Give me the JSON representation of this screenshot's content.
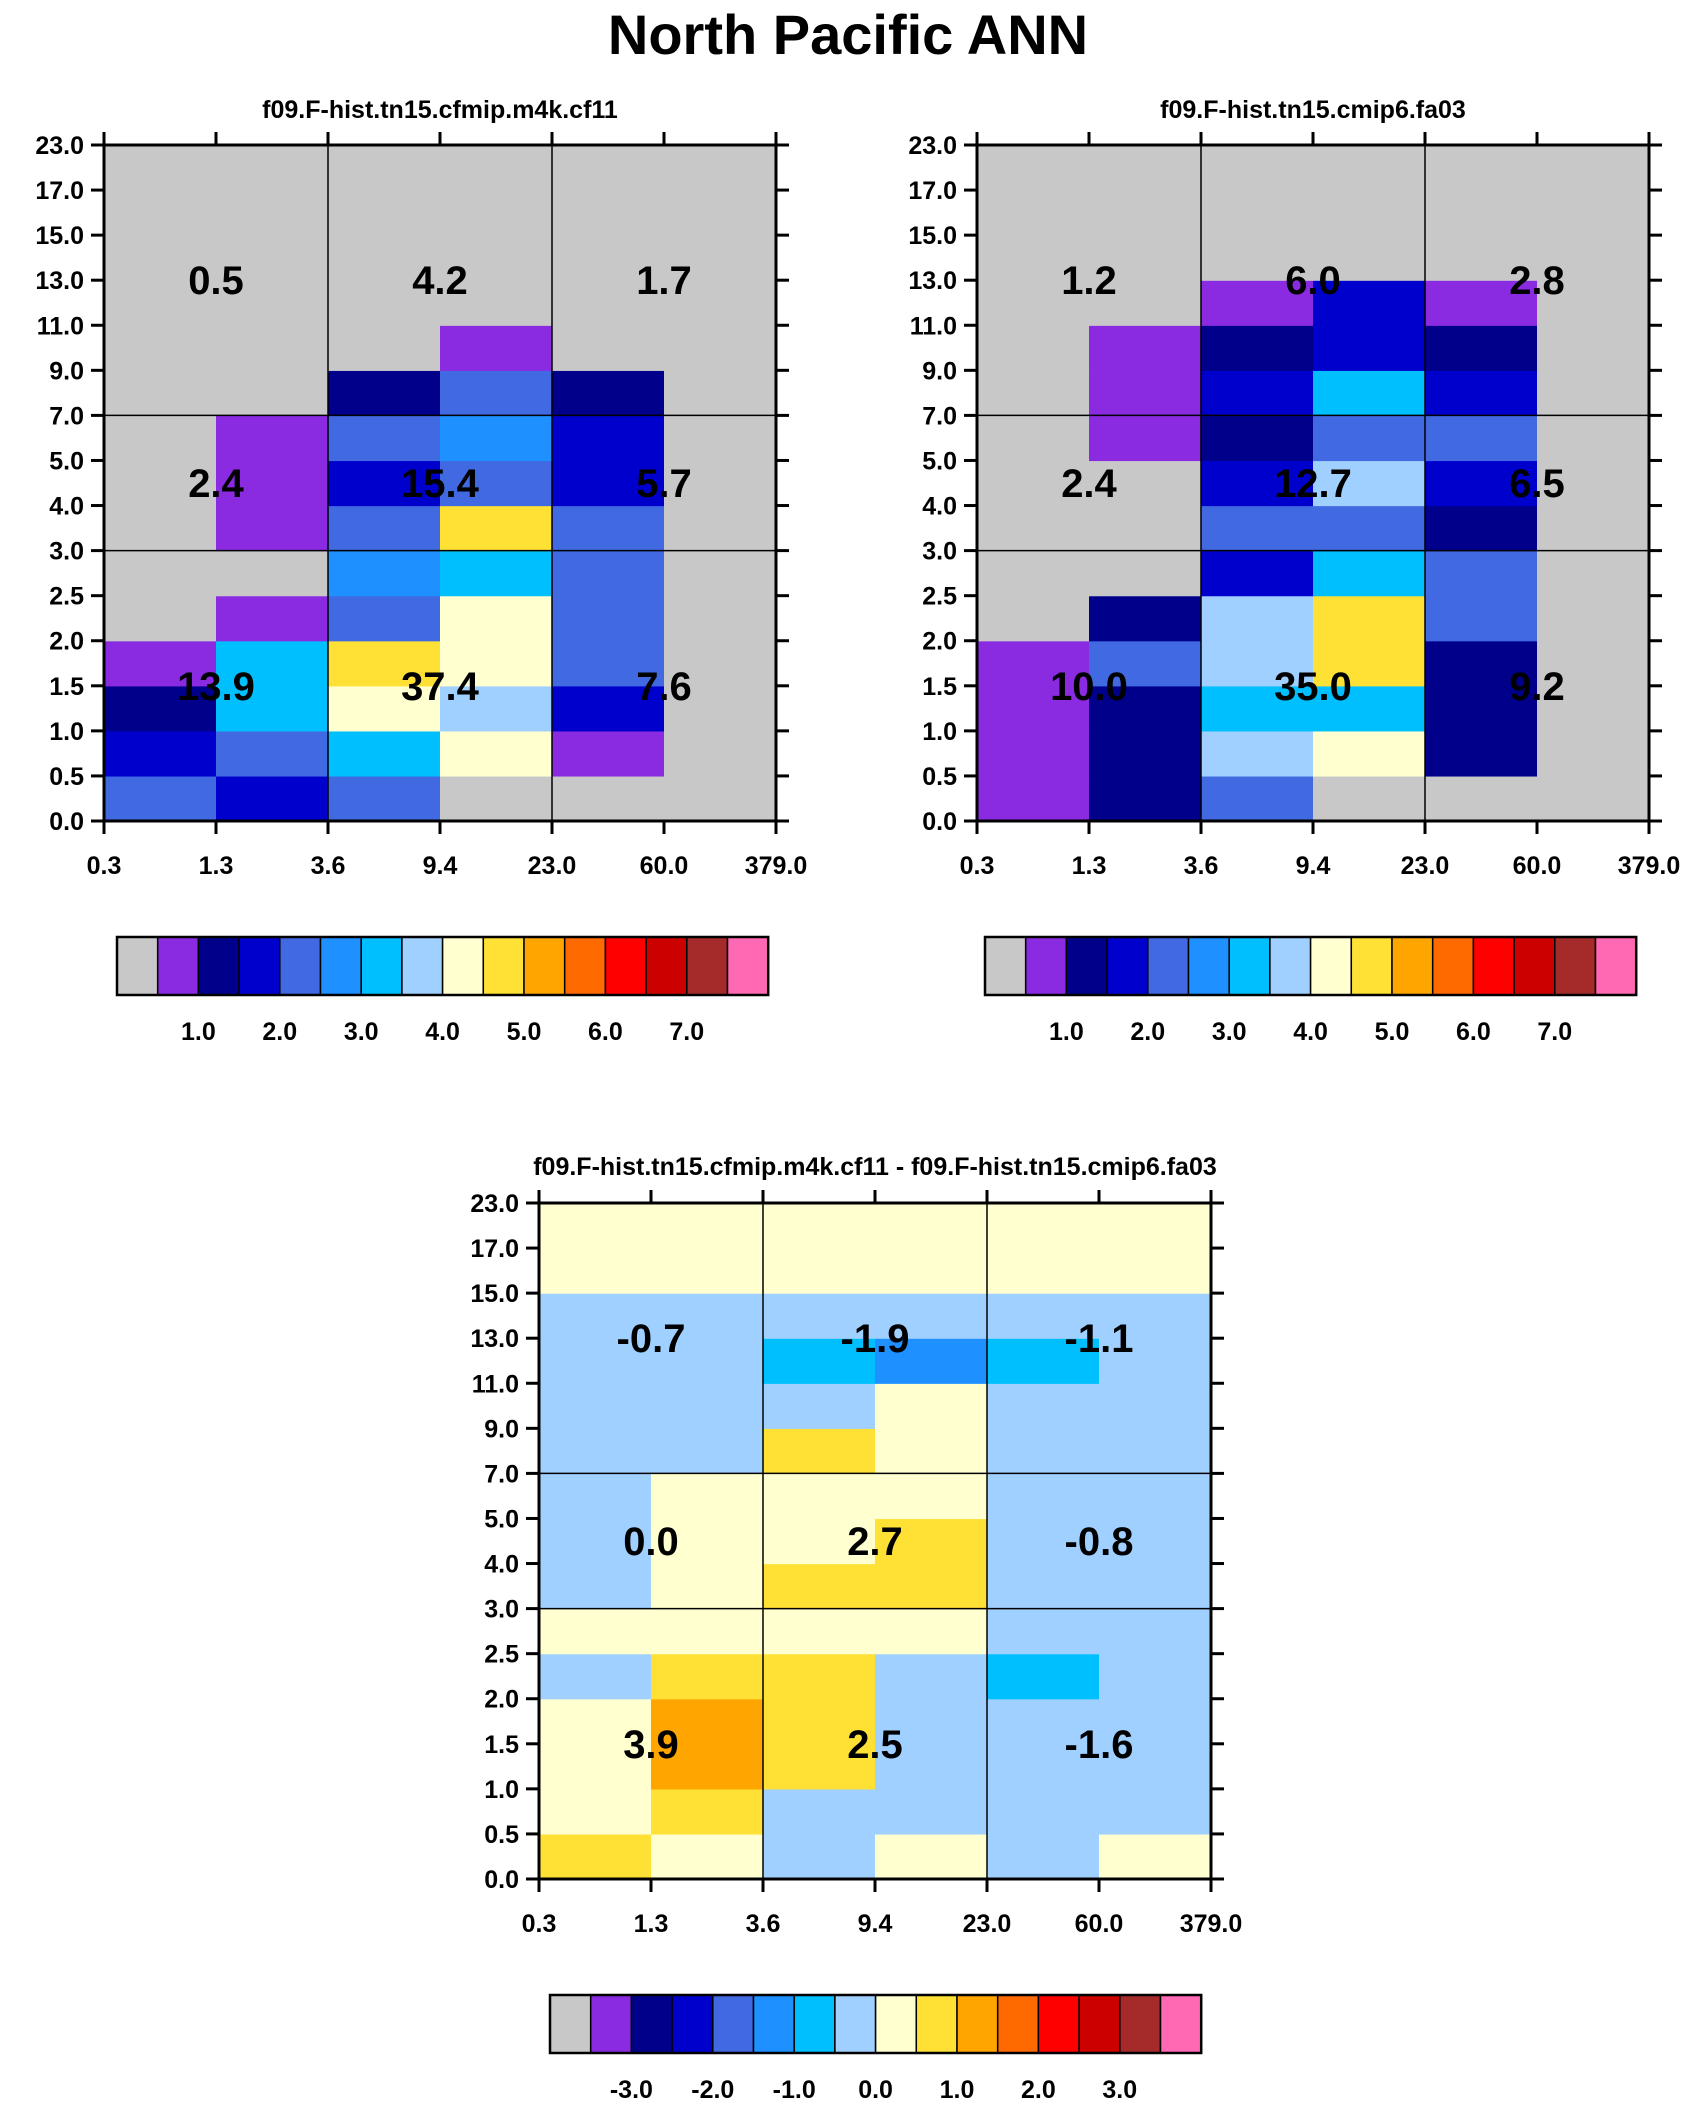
{
  "title": "North Pacific ANN",
  "axes": {
    "x_ticks": [
      "0.3",
      "1.3",
      "3.6",
      "9.4",
      "23.0",
      "60.0",
      "379.0"
    ],
    "y_ticks": [
      "0.0",
      "0.5",
      "1.0",
      "1.5",
      "2.0",
      "2.5",
      "3.0",
      "4.0",
      "5.0",
      "7.0",
      "9.0",
      "11.0",
      "13.0",
      "15.0",
      "17.0",
      "23.0"
    ]
  },
  "colors": {
    "missing": "#c8c8c8",
    "frame": "#000000",
    "palette": [
      "#c8c8c8",
      "#8a2be2",
      "#00008b",
      "#0000cd",
      "#4169e1",
      "#1e90ff",
      "#00bfff",
      "#a0d0ff",
      "#ffffd0",
      "#ffe135",
      "#ffa500",
      "#ff6a00",
      "#ff0000",
      "#cd0000",
      "#a52a2a",
      "#ff69b4"
    ]
  },
  "chart_data": [
    {
      "type": "heatmap",
      "title": "f09.F-hist.tn15.cfmip.m4k.cf11",
      "colorbar_labels": [
        "1.0",
        "2.0",
        "3.0",
        "4.0",
        "5.0",
        "6.0",
        "7.0"
      ],
      "cells": [
        [
          4,
          3,
          4,
          0,
          0,
          0
        ],
        [
          3,
          4,
          6,
          8,
          1,
          0
        ],
        [
          2,
          6,
          8,
          7,
          3,
          0
        ],
        [
          1,
          6,
          9,
          8,
          4,
          0
        ],
        [
          0,
          1,
          4,
          8,
          4,
          0
        ],
        [
          0,
          0,
          5,
          6,
          4,
          0
        ],
        [
          0,
          1,
          4,
          9,
          4,
          0
        ],
        [
          0,
          1,
          3,
          4,
          3,
          0
        ],
        [
          0,
          1,
          4,
          5,
          3,
          0
        ],
        [
          0,
          0,
          2,
          4,
          2,
          0
        ],
        [
          0,
          0,
          0,
          1,
          0,
          0
        ],
        [
          0,
          0,
          0,
          0,
          0,
          0
        ],
        [
          0,
          0,
          0,
          0,
          0,
          0
        ],
        [
          0,
          0,
          0,
          0,
          0,
          0
        ],
        [
          0,
          0,
          0,
          0,
          0,
          0
        ]
      ],
      "block_values": [
        [
          "13.9",
          "37.4",
          "7.6"
        ],
        [
          "2.4",
          "15.4",
          "5.7"
        ],
        [
          "0.5",
          "4.2",
          "1.7"
        ]
      ]
    },
    {
      "type": "heatmap",
      "title": "f09.F-hist.tn15.cmip6.fa03",
      "colorbar_labels": [
        "1.0",
        "2.0",
        "3.0",
        "4.0",
        "5.0",
        "6.0",
        "7.0"
      ],
      "cells": [
        [
          1,
          2,
          4,
          0,
          0,
          0
        ],
        [
          1,
          2,
          7,
          8,
          2,
          0
        ],
        [
          1,
          2,
          6,
          6,
          2,
          0
        ],
        [
          1,
          4,
          7,
          9,
          2,
          0
        ],
        [
          0,
          2,
          7,
          9,
          4,
          0
        ],
        [
          0,
          0,
          3,
          6,
          4,
          0
        ],
        [
          0,
          0,
          4,
          4,
          2,
          0
        ],
        [
          0,
          0,
          3,
          7,
          3,
          0
        ],
        [
          0,
          1,
          2,
          4,
          4,
          0
        ],
        [
          0,
          1,
          3,
          6,
          3,
          0
        ],
        [
          0,
          1,
          2,
          3,
          2,
          0
        ],
        [
          0,
          0,
          1,
          3,
          1,
          0
        ],
        [
          0,
          0,
          0,
          0,
          0,
          0
        ],
        [
          0,
          0,
          0,
          0,
          0,
          0
        ],
        [
          0,
          0,
          0,
          0,
          0,
          0
        ]
      ],
      "block_values": [
        [
          "10.0",
          "35.0",
          "9.2"
        ],
        [
          "2.4",
          "12.7",
          "6.5"
        ],
        [
          "1.2",
          "6.0",
          "2.8"
        ]
      ]
    },
    {
      "type": "heatmap",
      "title": "f09.F-hist.tn15.cfmip.m4k.cf11 - f09.F-hist.tn15.cmip6.fa03",
      "colorbar_labels": [
        "-3.0",
        "-2.0",
        "-1.0",
        "0.0",
        "1.0",
        "2.0",
        "3.0"
      ],
      "cells": [
        [
          9,
          8,
          7,
          8,
          7,
          8
        ],
        [
          8,
          9,
          7,
          7,
          7,
          7
        ],
        [
          8,
          10,
          9,
          7,
          7,
          7
        ],
        [
          8,
          10,
          9,
          7,
          7,
          7
        ],
        [
          7,
          9,
          9,
          7,
          6,
          7
        ],
        [
          8,
          8,
          8,
          8,
          7,
          7
        ],
        [
          7,
          8,
          9,
          9,
          7,
          7
        ],
        [
          7,
          8,
          8,
          9,
          7,
          7
        ],
        [
          7,
          8,
          8,
          8,
          7,
          7
        ],
        [
          7,
          7,
          9,
          8,
          7,
          7
        ],
        [
          7,
          7,
          7,
          8,
          7,
          7
        ],
        [
          7,
          7,
          6,
          5,
          6,
          7
        ],
        [
          7,
          7,
          7,
          7,
          7,
          7
        ],
        [
          8,
          8,
          8,
          8,
          8,
          8
        ],
        [
          8,
          8,
          8,
          8,
          8,
          8
        ]
      ],
      "block_values": [
        [
          "3.9",
          "2.5",
          "-1.6"
        ],
        [
          "0.0",
          "2.7",
          "-0.8"
        ],
        [
          "-0.7",
          "-1.9",
          "-1.1"
        ]
      ]
    }
  ]
}
